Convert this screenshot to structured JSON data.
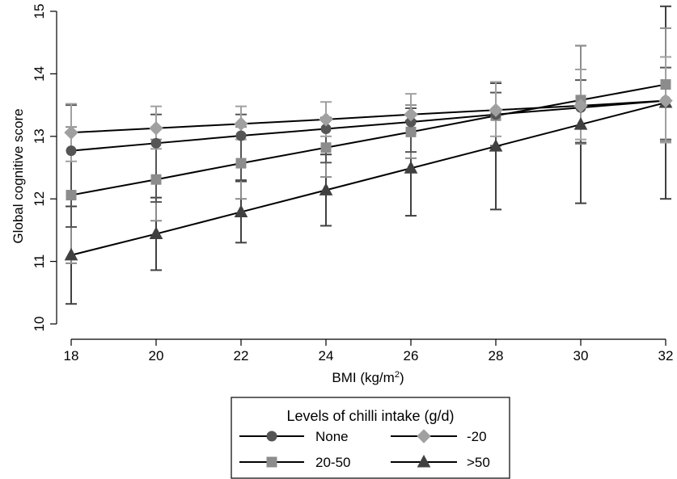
{
  "chart_data": {
    "type": "line",
    "xlabel": "BMI (kg/m²)",
    "ylabel": "Global cognitive score",
    "xlim": [
      18,
      32
    ],
    "ylim": [
      10,
      15
    ],
    "xticks": [
      18,
      20,
      22,
      24,
      26,
      28,
      30,
      32
    ],
    "yticks": [
      10,
      11,
      12,
      13,
      14,
      15
    ],
    "x": [
      18,
      20,
      22,
      24,
      26,
      28,
      30,
      32
    ],
    "grid": false,
    "legend": {
      "title": "Levels of chilli intake (g/d)",
      "placement": "bottom-center"
    },
    "series": [
      {
        "name": "None",
        "marker": "circle",
        "color": "#555555",
        "values": [
          12.77,
          12.89,
          13.01,
          13.12,
          13.23,
          13.35,
          13.46,
          13.57
        ],
        "lower": [
          11.55,
          11.95,
          12.3,
          12.58,
          12.75,
          12.85,
          12.9,
          12.95
        ],
        "upper": [
          13.5,
          13.35,
          13.35,
          13.3,
          13.45,
          13.7,
          13.9,
          14.1
        ]
      },
      {
        "name": "-20",
        "marker": "diamond",
        "color": "#a0a0a0",
        "values": [
          13.06,
          13.13,
          13.2,
          13.27,
          13.35,
          13.42,
          13.49,
          13.57
        ],
        "lower": [
          12.6,
          12.8,
          12.95,
          13.0,
          13.05,
          13.0,
          12.95,
          12.9
        ],
        "upper": [
          13.52,
          13.48,
          13.48,
          13.55,
          13.68,
          13.87,
          14.07,
          14.27
        ]
      },
      {
        "name": "20-50",
        "marker": "square",
        "color": "#8c8c8c",
        "values": [
          12.06,
          12.31,
          12.57,
          12.82,
          13.07,
          13.33,
          13.58,
          13.83
        ],
        "lower": [
          10.97,
          11.65,
          12.0,
          12.35,
          12.65,
          12.78,
          12.88,
          12.92
        ],
        "upper": [
          13.15,
          12.95,
          13.15,
          13.28,
          13.5,
          13.87,
          14.45,
          14.73
        ]
      },
      {
        "name": ">50",
        "marker": "triangle",
        "color": "#404040",
        "values": [
          11.1,
          11.44,
          11.79,
          12.14,
          12.49,
          12.84,
          13.19,
          13.54
        ],
        "lower": [
          10.32,
          10.86,
          11.3,
          11.57,
          11.73,
          11.83,
          11.93,
          12.0
        ],
        "upper": [
          11.88,
          12.02,
          12.28,
          12.71,
          13.25,
          13.85,
          14.45,
          15.08
        ]
      }
    ]
  }
}
